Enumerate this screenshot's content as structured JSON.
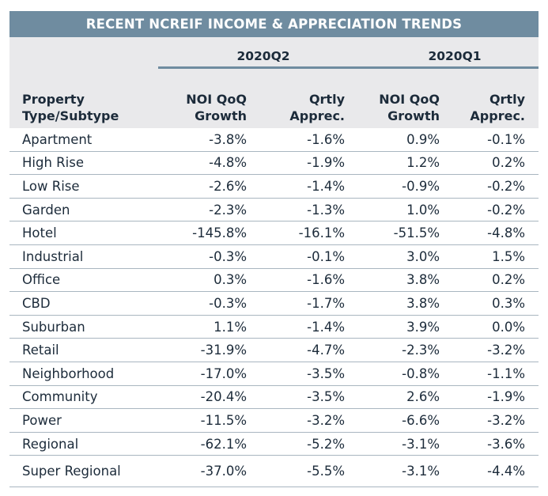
{
  "title": "RECENT NCREIF INCOME & APPRECIATION TRENDS",
  "periods": [
    "2020Q2",
    "2020Q1"
  ],
  "columns": {
    "property": [
      "Property",
      "Type/Subtype"
    ],
    "noi": [
      "NOI QoQ",
      "Growth"
    ],
    "apprec": [
      "Qrtly",
      "Apprec."
    ]
  },
  "rows": [
    {
      "name": "Apartment",
      "q2_noi": "-3.8%",
      "q2_apprec": "-1.6%",
      "q1_noi": "0.9%",
      "q1_apprec": "-0.1%"
    },
    {
      "name": "High Rise",
      "q2_noi": "-4.8%",
      "q2_apprec": "-1.9%",
      "q1_noi": "1.2%",
      "q1_apprec": "0.2%"
    },
    {
      "name": "Low Rise",
      "q2_noi": "-2.6%",
      "q2_apprec": "-1.4%",
      "q1_noi": "-0.9%",
      "q1_apprec": "-0.2%"
    },
    {
      "name": "Garden",
      "q2_noi": "-2.3%",
      "q2_apprec": "-1.3%",
      "q1_noi": "1.0%",
      "q1_apprec": "-0.2%"
    },
    {
      "name": "Hotel",
      "q2_noi": "-145.8%",
      "q2_apprec": "-16.1%",
      "q1_noi": "-51.5%",
      "q1_apprec": "-4.8%"
    },
    {
      "name": "Industrial",
      "q2_noi": "-0.3%",
      "q2_apprec": "-0.1%",
      "q1_noi": "3.0%",
      "q1_apprec": "1.5%"
    },
    {
      "name": "Office",
      "q2_noi": "0.3%",
      "q2_apprec": "-1.6%",
      "q1_noi": "3.8%",
      "q1_apprec": "0.2%"
    },
    {
      "name": "CBD",
      "q2_noi": "-0.3%",
      "q2_apprec": "-1.7%",
      "q1_noi": "3.8%",
      "q1_apprec": "0.3%"
    },
    {
      "name": "Suburban",
      "q2_noi": "1.1%",
      "q2_apprec": "-1.4%",
      "q1_noi": "3.9%",
      "q1_apprec": "0.0%"
    },
    {
      "name": "Retail",
      "q2_noi": "-31.9%",
      "q2_apprec": "-4.7%",
      "q1_noi": "-2.3%",
      "q1_apprec": "-3.2%"
    },
    {
      "name": "Neighborhood",
      "q2_noi": "-17.0%",
      "q2_apprec": "-3.5%",
      "q1_noi": "-0.8%",
      "q1_apprec": "-1.1%"
    },
    {
      "name": "Community",
      "q2_noi": "-20.4%",
      "q2_apprec": "-3.5%",
      "q1_noi": "2.6%",
      "q1_apprec": "-1.9%"
    },
    {
      "name": "Power",
      "q2_noi": "-11.5%",
      "q2_apprec": "-3.2%",
      "q1_noi": "-6.6%",
      "q1_apprec": "-3.2%"
    },
    {
      "name": "Regional",
      "q2_noi": "-62.1%",
      "q2_apprec": "-5.2%",
      "q1_noi": "-3.1%",
      "q1_apprec": "-3.6%"
    },
    {
      "name": "Super Regional",
      "q2_noi": "-37.0%",
      "q2_apprec": "-5.5%",
      "q1_noi": "-3.1%",
      "q1_apprec": "-4.4%"
    }
  ],
  "colors": {
    "title_bg": "#6f8ca0",
    "header_bg": "#e9e9eb",
    "text": "#1c2b3a",
    "rule": "#a9b6c0"
  }
}
